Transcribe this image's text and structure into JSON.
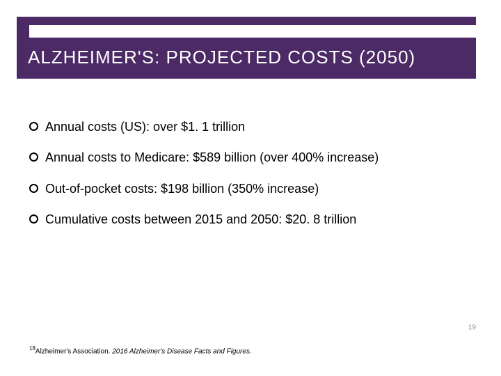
{
  "colors": {
    "accent_purple": "#4b2a66",
    "title_text": "#ffffff",
    "body_text": "#000000",
    "page_number": "#888888",
    "background": "#ffffff"
  },
  "typography": {
    "title_fontsize": 26,
    "title_letterspacing": 1,
    "body_fontsize": 18,
    "footnote_fontsize": 10,
    "pagenum_fontsize": 10
  },
  "title": "ALZHEIMER'S: PROJECTED COSTS (2050)",
  "bullets": [
    "Annual costs (US): over $1. 1 trillion",
    "Annual costs to Medicare: $589 billion (over 400% increase)",
    "Out-of-pocket costs: $198 billion (350% increase)",
    "Cumulative costs between 2015 and 2050:  $20. 8 trillion"
  ],
  "page_number": "19",
  "footnote": {
    "ref": "18",
    "source": "Alzheimer's Association. ",
    "title_italic": "2016 Alzheimer's Disease Facts and Figures",
    "tail": "."
  }
}
